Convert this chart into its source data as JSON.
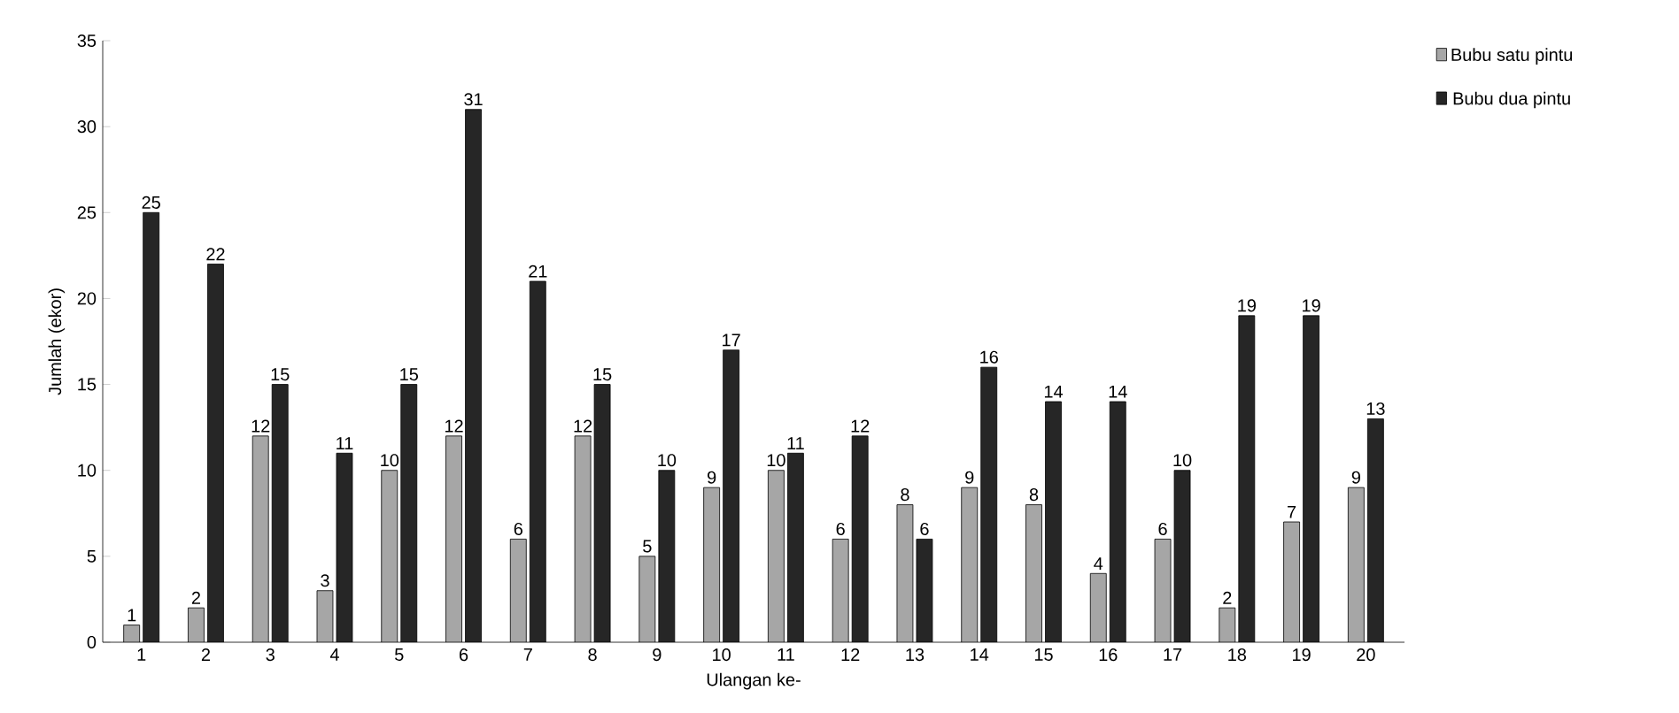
{
  "chart_data": {
    "type": "bar",
    "xlabel": "Ulangan ke-",
    "ylabel": "Jumlah (ekor)",
    "categories": [
      "1",
      "2",
      "3",
      "4",
      "5",
      "6",
      "7",
      "8",
      "9",
      "10",
      "11",
      "12",
      "13",
      "14",
      "15",
      "16",
      "17",
      "18",
      "19",
      "20"
    ],
    "series": [
      {
        "name": "Bubu satu pintu",
        "color": "#a6a6a6",
        "values": [
          1,
          2,
          12,
          3,
          10,
          12,
          6,
          12,
          5,
          9,
          10,
          6,
          8,
          9,
          8,
          4,
          6,
          2,
          7,
          9
        ]
      },
      {
        "name": "Bubu dua pintu",
        "color": "#262626",
        "values": [
          25,
          22,
          15,
          11,
          15,
          31,
          21,
          15,
          10,
          17,
          11,
          12,
          6,
          16,
          14,
          14,
          10,
          19,
          19,
          13
        ]
      }
    ],
    "ylim": [
      0,
      35
    ],
    "yticks": [
      0,
      5,
      10,
      15,
      20,
      25,
      30,
      35
    ],
    "data_labels": true,
    "legend": "top right",
    "grid": false
  }
}
